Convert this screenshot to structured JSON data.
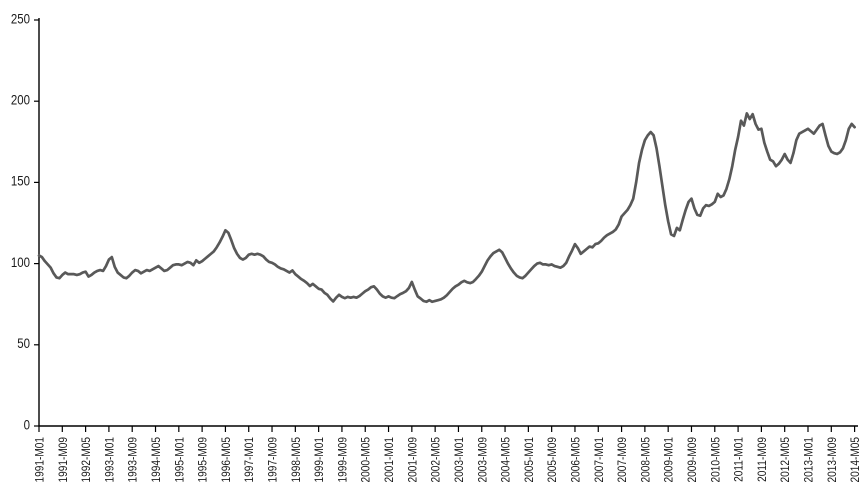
{
  "chart_data": {
    "type": "line",
    "title": "",
    "xlabel": "",
    "ylabel": "",
    "background_color": "#ffffff",
    "axis_color": "#000000",
    "label_color": "#1a1a1a",
    "line_color": "#595959",
    "grid": false,
    "legend": false,
    "ylim": [
      0,
      250
    ],
    "yticks": [
      0,
      50,
      100,
      150,
      200,
      250
    ],
    "x_start": "1991-M01",
    "x_end": "2014-M05",
    "x_frequency": "monthly",
    "x_tick_step_months": 8,
    "x_tick_labels": [
      "1991-M01",
      "1991-M09",
      "1992-M05",
      "1993-M01",
      "1993-M09",
      "1994-M05",
      "1995-M01",
      "1995-M09",
      "1996-M05",
      "1997-M01",
      "1997-M09",
      "1998-M05",
      "1999-M01",
      "1999-M09",
      "2000-M05",
      "2001-M01",
      "2001-M09",
      "2002-M05",
      "2003-M01",
      "2003-M09",
      "2004-M05",
      "2005-M01",
      "2005-M09",
      "2006-M05",
      "2007-M01",
      "2007-M09",
      "2008-M05",
      "2009-M01",
      "2009-M09",
      "2010-M05",
      "2011-M01",
      "2011-M09",
      "2012-M05",
      "2013-M01",
      "2013-M09",
      "2014-M05"
    ],
    "values": [
      105,
      104,
      101.5,
      99.5,
      97.5,
      94,
      91.5,
      91,
      93,
      94.5,
      93.5,
      93.5,
      93.5,
      93,
      93.5,
      94.5,
      95,
      92,
      93,
      94.5,
      95.5,
      96,
      95.5,
      98.5,
      102.5,
      104,
      98,
      94.5,
      93,
      91.5,
      91,
      92.5,
      94.5,
      96,
      95.5,
      94,
      95,
      96,
      95.5,
      96.5,
      97.5,
      98.5,
      97,
      95.5,
      96,
      97.5,
      99,
      99.5,
      99.5,
      99,
      100,
      101,
      100.5,
      99,
      102,
      100.5,
      101.5,
      103,
      104.5,
      106,
      107.5,
      110,
      113,
      116.5,
      120.5,
      119,
      114.5,
      109.5,
      106,
      103.5,
      102.5,
      103.5,
      105.5,
      106,
      105.5,
      106,
      105.5,
      104.5,
      102.5,
      101,
      100.5,
      99.5,
      98,
      97,
      96.5,
      95.5,
      94.5,
      95.8,
      93.5,
      92,
      90.5,
      89.4,
      88,
      86.2,
      87.5,
      86,
      84.5,
      84,
      82,
      80.8,
      78.5,
      76.7,
      79,
      80.8,
      79.5,
      78.7,
      79.5,
      79,
      79.5,
      79,
      80,
      81.5,
      83,
      84,
      85.5,
      86,
      84,
      81.5,
      79.8,
      79,
      79.8,
      79,
      78.7,
      80,
      81.2,
      82,
      83,
      85,
      88.7,
      84,
      79.8,
      78.5,
      77,
      76.5,
      77.5,
      76.5,
      77,
      77.5,
      78,
      79,
      80.5,
      82.5,
      84.5,
      86,
      87,
      88.5,
      89.4,
      88.5,
      88,
      88.7,
      90.5,
      92.5,
      95,
      98.5,
      102,
      104.5,
      106.5,
      107.5,
      108.5,
      107,
      103.5,
      100,
      97,
      94.5,
      92.5,
      91.5,
      91,
      92.5,
      94.5,
      96.5,
      98.5,
      100,
      100.5,
      99.5,
      99.5,
      99,
      99.5,
      98.5,
      98,
      97.5,
      98.5,
      100.5,
      104.5,
      108,
      112,
      109.5,
      106,
      107.5,
      109,
      110.5,
      110,
      112,
      112.5,
      114,
      116,
      117.5,
      118.5,
      119.5,
      121,
      124,
      129,
      131,
      133,
      136,
      140,
      150,
      162,
      170,
      176,
      179,
      181,
      179,
      171,
      160,
      148,
      136,
      126,
      118,
      117,
      122,
      120.5,
      127,
      133,
      138,
      140,
      134,
      130,
      129.5,
      134,
      136,
      135.5,
      136.5,
      138,
      143,
      141,
      142,
      146,
      152,
      160,
      170,
      178,
      188,
      185,
      192.5,
      189,
      192,
      186,
      182.5,
      183,
      174.5,
      169,
      164,
      163,
      160,
      161.5,
      164,
      167.5,
      164,
      162,
      168,
      176,
      180,
      181,
      182,
      183,
      181.5,
      180,
      182.5,
      185,
      186,
      179,
      172.5,
      169,
      168,
      167.5,
      168.5,
      171,
      176,
      183,
      186,
      184
    ]
  }
}
